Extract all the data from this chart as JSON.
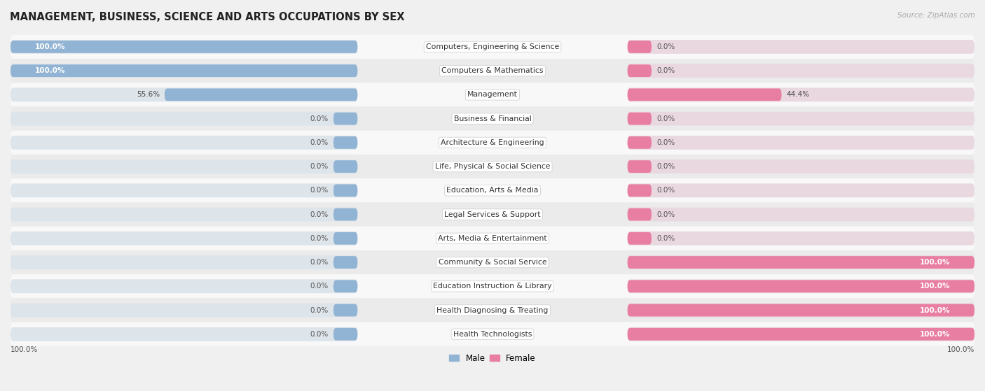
{
  "title": "MANAGEMENT, BUSINESS, SCIENCE AND ARTS OCCUPATIONS BY SEX",
  "source": "Source: ZipAtlas.com",
  "categories": [
    "Computers, Engineering & Science",
    "Computers & Mathematics",
    "Management",
    "Business & Financial",
    "Architecture & Engineering",
    "Life, Physical & Social Science",
    "Education, Arts & Media",
    "Legal Services & Support",
    "Arts, Media & Entertainment",
    "Community & Social Service",
    "Education Instruction & Library",
    "Health Diagnosing & Treating",
    "Health Technologists"
  ],
  "male_values": [
    100.0,
    100.0,
    55.6,
    0.0,
    0.0,
    0.0,
    0.0,
    0.0,
    0.0,
    0.0,
    0.0,
    0.0,
    0.0
  ],
  "female_values": [
    0.0,
    0.0,
    44.4,
    0.0,
    0.0,
    0.0,
    0.0,
    0.0,
    0.0,
    100.0,
    100.0,
    100.0,
    100.0
  ],
  "male_color": "#92b4d4",
  "female_color": "#e87fa3",
  "male_label": "Male",
  "female_label": "Female",
  "background_color": "#f0f0f0",
  "row_light_color": "#f8f8f8",
  "row_dark_color": "#ebebeb",
  "track_color": "#e0e0e0",
  "title_fontsize": 10.5,
  "label_fontsize": 7.8,
  "value_fontsize": 7.5,
  "legend_fontsize": 8.5,
  "male_100_label_color": "#ffffff",
  "female_100_label_color": "#ffffff",
  "zero_label_color": "#555555"
}
